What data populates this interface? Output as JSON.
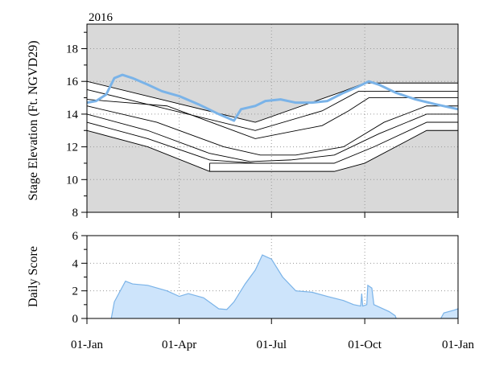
{
  "chart_data": [
    {
      "type": "line",
      "title": "2016",
      "ylabel": "Stage Elevation (Ft. NGVD29)",
      "ylim": [
        8,
        19.5
      ],
      "yticks": [
        8,
        10,
        12,
        14,
        16,
        18
      ],
      "xlim": [
        "2016-01-01",
        "2017-01-01"
      ],
      "xticks": [
        "01-Jan",
        "01-Apr",
        "01-Jul",
        "01-Oct",
        "01-Jan"
      ],
      "xtick_dates": [
        "2016-01-01",
        "2016-04-01",
        "2016-07-01",
        "2016-10-01",
        "2017-01-01"
      ],
      "grid": "dotted",
      "colors": {
        "zone_fill": "#d9d9d9",
        "band_fill": "#ffffff",
        "stage": "#7ab3e8",
        "guide": "#000000"
      },
      "zone_top": [
        [
          "2016-01-01",
          16.0
        ],
        [
          "2016-06-15",
          13.5
        ],
        [
          "2016-09-10",
          15.4
        ],
        [
          "2016-10-01",
          15.9
        ],
        [
          "2017-01-01",
          15.9
        ]
      ],
      "zone_bottom": [
        [
          "2016-01-01",
          13.0
        ],
        [
          "2016-03-01",
          12.0
        ],
        [
          "2016-05-01",
          10.5
        ],
        [
          "2016-09-01",
          10.5
        ],
        [
          "2016-10-01",
          11.0
        ],
        [
          "2016-12-01",
          13.0
        ],
        [
          "2017-01-01",
          13.0
        ]
      ],
      "guide_lines": [
        [
          [
            "2016-01-01",
            16.0
          ],
          [
            "2016-06-15",
            13.5
          ],
          [
            "2016-09-10",
            15.4
          ],
          [
            "2016-10-01",
            15.9
          ],
          [
            "2017-01-01",
            15.9
          ]
        ],
        [
          [
            "2016-01-01",
            15.5
          ],
          [
            "2016-06-15",
            13.0
          ],
          [
            "2016-08-20",
            14.2
          ],
          [
            "2016-09-25",
            15.4
          ],
          [
            "2017-01-01",
            15.4
          ]
        ],
        [
          [
            "2016-01-01",
            14.9
          ],
          [
            "2016-03-20",
            14.5
          ],
          [
            "2016-06-15",
            12.5
          ],
          [
            "2016-08-20",
            13.3
          ],
          [
            "2016-09-15",
            14.2
          ],
          [
            "2016-10-05",
            15.0
          ],
          [
            "2017-01-01",
            15.0
          ]
        ],
        [
          [
            "2016-01-01",
            14.5
          ],
          [
            "2016-03-10",
            13.5
          ],
          [
            "2016-05-15",
            12.0
          ],
          [
            "2016-06-20",
            11.5
          ],
          [
            "2016-07-25",
            11.5
          ],
          [
            "2016-09-10",
            12.0
          ],
          [
            "2016-10-20",
            13.5
          ],
          [
            "2016-12-01",
            14.5
          ],
          [
            "2017-01-01",
            14.5
          ]
        ],
        [
          [
            "2016-01-01",
            14.0
          ],
          [
            "2016-03-01",
            13.0
          ],
          [
            "2016-05-01",
            11.6
          ],
          [
            "2016-06-10",
            11.1
          ],
          [
            "2016-07-20",
            11.2
          ],
          [
            "2016-09-01",
            11.5
          ],
          [
            "2016-10-15",
            12.8
          ],
          [
            "2016-12-01",
            14.0
          ],
          [
            "2017-01-01",
            14.0
          ]
        ],
        [
          [
            "2016-01-01",
            13.5
          ],
          [
            "2016-03-01",
            12.5
          ],
          [
            "2016-05-01",
            11.2
          ],
          [
            "2016-06-15",
            11.0
          ],
          [
            "2016-07-25",
            11.0
          ],
          [
            "2016-09-01",
            11.0
          ],
          [
            "2016-10-10",
            12.0
          ],
          [
            "2016-12-01",
            13.5
          ],
          [
            "2017-01-01",
            13.5
          ]
        ],
        [
          [
            "2016-01-01",
            13.0
          ],
          [
            "2016-03-01",
            12.0
          ],
          [
            "2016-05-01",
            10.5
          ],
          [
            "2016-09-01",
            10.5
          ],
          [
            "2016-10-01",
            11.0
          ],
          [
            "2016-12-01",
            13.0
          ],
          [
            "2017-01-01",
            13.0
          ]
        ],
        [
          [
            "2016-05-01",
            11.0
          ],
          [
            "2016-09-01",
            11.0
          ]
        ],
        [
          [
            "2016-05-01",
            10.5
          ],
          [
            "2016-05-01",
            11.0
          ]
        ],
        [
          [
            "2016-12-01",
            13.5
          ],
          [
            "2017-01-01",
            13.5
          ]
        ],
        [
          [
            "2017-01-01",
            13.0
          ],
          [
            "2017-01-01",
            13.5
          ]
        ]
      ],
      "series": [
        {
          "values": [
            [
              "2016-01-01",
              14.7
            ],
            [
              "2016-01-10",
              14.8
            ],
            [
              "2016-01-20",
              15.2
            ],
            [
              "2016-01-28",
              16.2
            ],
            [
              "2016-02-05",
              16.4
            ],
            [
              "2016-02-15",
              16.2
            ],
            [
              "2016-03-01",
              15.8
            ],
            [
              "2016-03-15",
              15.4
            ],
            [
              "2016-04-01",
              15.1
            ],
            [
              "2016-04-20",
              14.6
            ],
            [
              "2016-05-10",
              14.0
            ],
            [
              "2016-05-25",
              13.6
            ],
            [
              "2016-06-01",
              14.3
            ],
            [
              "2016-06-15",
              14.5
            ],
            [
              "2016-06-25",
              14.8
            ],
            [
              "2016-07-10",
              14.9
            ],
            [
              "2016-07-25",
              14.7
            ],
            [
              "2016-08-10",
              14.7
            ],
            [
              "2016-08-25",
              14.8
            ],
            [
              "2016-09-10",
              15.3
            ],
            [
              "2016-09-25",
              15.7
            ],
            [
              "2016-10-05",
              16.0
            ],
            [
              "2016-10-15",
              15.8
            ],
            [
              "2016-11-01",
              15.3
            ],
            [
              "2016-11-20",
              14.9
            ],
            [
              "2016-12-10",
              14.6
            ],
            [
              "2017-01-01",
              14.3
            ]
          ]
        }
      ]
    },
    {
      "type": "area",
      "ylabel": "Daily Score",
      "ylim": [
        0,
        6
      ],
      "yticks": [
        0,
        2,
        4,
        6
      ],
      "xlim": [
        "2016-01-01",
        "2017-01-01"
      ],
      "xticks": [
        "01-Jan",
        "01-Apr",
        "01-Jul",
        "01-Oct",
        "01-Jan"
      ],
      "xtick_dates": [
        "2016-01-01",
        "2016-04-01",
        "2016-07-01",
        "2016-10-01",
        "2017-01-01"
      ],
      "grid": "dotted",
      "colors": {
        "area_fill": "#cde4fb",
        "area_line": "#7ab3e8"
      },
      "series": [
        {
          "values": [
            [
              "2016-01-25",
              0
            ],
            [
              "2016-01-28",
              1.2
            ],
            [
              "2016-02-08",
              2.7
            ],
            [
              "2016-02-15",
              2.5
            ],
            [
              "2016-03-01",
              2.4
            ],
            [
              "2016-03-20",
              2.0
            ],
            [
              "2016-04-01",
              1.6
            ],
            [
              "2016-04-10",
              1.8
            ],
            [
              "2016-04-25",
              1.5
            ],
            [
              "2016-05-10",
              0.7
            ],
            [
              "2016-05-18",
              0.65
            ],
            [
              "2016-05-25",
              1.2
            ],
            [
              "2016-06-05",
              2.5
            ],
            [
              "2016-06-15",
              3.5
            ],
            [
              "2016-06-22",
              4.6
            ],
            [
              "2016-07-01",
              4.3
            ],
            [
              "2016-07-12",
              3.0
            ],
            [
              "2016-07-25",
              2.0
            ],
            [
              "2016-08-10",
              1.9
            ],
            [
              "2016-08-25",
              1.6
            ],
            [
              "2016-09-10",
              1.3
            ],
            [
              "2016-09-20",
              1.0
            ],
            [
              "2016-09-27",
              0.9
            ],
            [
              "2016-09-28",
              1.8
            ],
            [
              "2016-09-29",
              0.9
            ],
            [
              "2016-10-03",
              1.0
            ],
            [
              "2016-10-04",
              2.4
            ],
            [
              "2016-10-08",
              2.2
            ],
            [
              "2016-10-10",
              1.0
            ],
            [
              "2016-10-25",
              0.5
            ],
            [
              "2016-10-31",
              0.2
            ],
            [
              "2016-11-01",
              0
            ]
          ]
        },
        {
          "values": [
            [
              "2016-12-15",
              0
            ],
            [
              "2016-12-18",
              0.4
            ],
            [
              "2016-12-28",
              0.6
            ],
            [
              "2017-01-01",
              0.7
            ],
            [
              "2017-01-01",
              0
            ]
          ]
        }
      ]
    }
  ]
}
